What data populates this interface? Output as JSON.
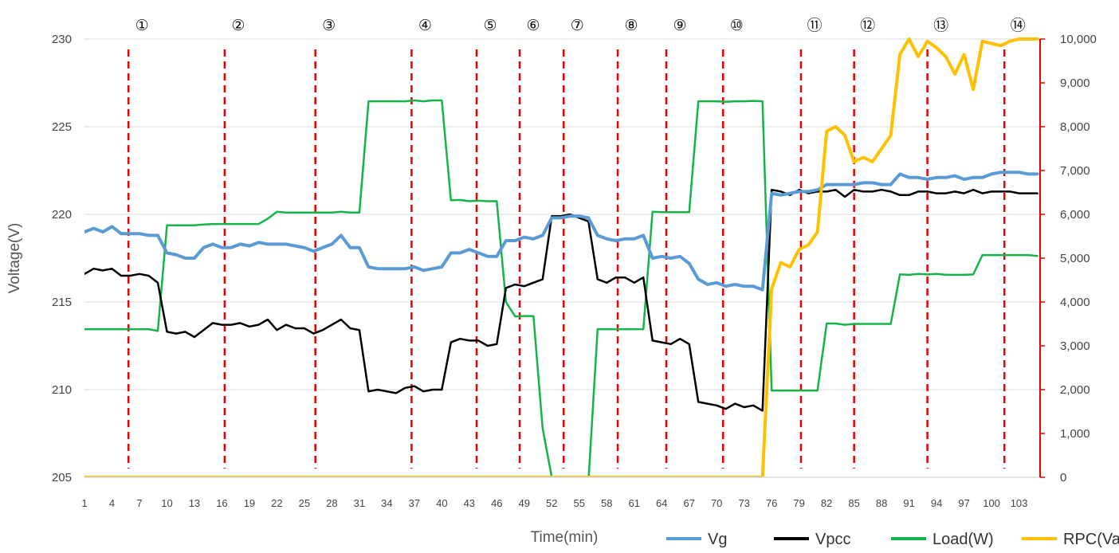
{
  "chart_data": {
    "type": "line",
    "xlabel": "Time(min)",
    "ylabel": "Voltage(V)",
    "x": [
      1,
      2,
      3,
      4,
      5,
      6,
      7,
      8,
      9,
      10,
      11,
      12,
      13,
      14,
      15,
      16,
      17,
      18,
      19,
      20,
      21,
      22,
      23,
      24,
      25,
      26,
      27,
      28,
      29,
      30,
      31,
      32,
      33,
      34,
      35,
      36,
      37,
      38,
      39,
      40,
      41,
      42,
      43,
      44,
      45,
      46,
      47,
      48,
      49,
      50,
      51,
      52,
      53,
      54,
      55,
      56,
      57,
      58,
      59,
      60,
      61,
      62,
      63,
      64,
      65,
      66,
      67,
      68,
      69,
      70,
      71,
      72,
      73,
      74,
      75,
      76,
      77,
      78,
      79,
      80,
      81,
      82,
      83,
      84,
      85,
      86,
      87,
      88,
      89,
      90,
      91,
      92,
      93,
      94,
      95,
      96,
      97,
      98,
      99,
      100,
      101,
      102,
      103,
      104,
      105
    ],
    "x_tick_labels": [
      "1",
      "4",
      "7",
      "10",
      "13",
      "16",
      "19",
      "22",
      "25",
      "28",
      "31",
      "34",
      "37",
      "40",
      "43",
      "46",
      "49",
      "52",
      "55",
      "58",
      "61",
      "64",
      "67",
      "70",
      "73",
      "76",
      "79",
      "82",
      "85",
      "88",
      "91",
      "94",
      "97",
      "100",
      "103"
    ],
    "y_left": {
      "min": 205,
      "max": 230,
      "ticks": [
        "205",
        "210",
        "215",
        "220",
        "225",
        "230"
      ]
    },
    "y_right": {
      "min": 0,
      "max": 10000,
      "ticks": [
        "0",
        "1,000",
        "2,000",
        "3,000",
        "4,000",
        "5,000",
        "6,000",
        "7,000",
        "8,000",
        "9,000",
        "10,000"
      ],
      "color": "#e60000"
    },
    "grid": true,
    "legend_position": "bottom-right",
    "markers": [
      {
        "label": "①",
        "x": 5.8
      },
      {
        "label": "②",
        "x": 16.3
      },
      {
        "label": "③",
        "x": 26.2
      },
      {
        "label": "④",
        "x": 36.7
      },
      {
        "label": "⑤",
        "x": 43.8
      },
      {
        "label": "⑥",
        "x": 48.5
      },
      {
        "label": "⑦",
        "x": 53.3
      },
      {
        "label": "⑧",
        "x": 59.2
      },
      {
        "label": "⑨",
        "x": 64.5
      },
      {
        "label": "⑩",
        "x": 70.7
      },
      {
        "label": "⑪",
        "x": 79.2
      },
      {
        "label": "⑫",
        "x": 85.0
      },
      {
        "label": "⑬",
        "x": 93.0
      },
      {
        "label": "⑭",
        "x": 101.4
      }
    ],
    "series": [
      {
        "name": "Vg",
        "axis": "left",
        "color": "#5b9bd5",
        "width": 4,
        "values": [
          219.0,
          219.2,
          219.0,
          219.3,
          218.9,
          218.9,
          218.9,
          218.8,
          218.8,
          217.8,
          217.7,
          217.5,
          217.5,
          218.1,
          218.3,
          218.1,
          218.1,
          218.3,
          218.2,
          218.4,
          218.3,
          218.3,
          218.3,
          218.2,
          218.1,
          217.9,
          218.1,
          218.3,
          218.8,
          218.1,
          218.1,
          217.0,
          216.9,
          216.9,
          216.9,
          216.9,
          217.0,
          216.8,
          216.9,
          217.0,
          217.8,
          217.8,
          218.0,
          217.8,
          217.6,
          217.6,
          218.5,
          218.5,
          218.7,
          218.6,
          218.8,
          219.8,
          219.8,
          219.9,
          219.9,
          219.8,
          218.8,
          218.6,
          218.5,
          218.6,
          218.6,
          218.8,
          217.5,
          217.6,
          217.5,
          217.6,
          217.2,
          216.3,
          216.0,
          216.1,
          215.9,
          216.0,
          215.9,
          215.9,
          215.7,
          221.2,
          221.1,
          221.2,
          221.3,
          221.3,
          221.4,
          221.7,
          221.7,
          221.7,
          221.7,
          221.8,
          221.8,
          221.7,
          221.7,
          222.3,
          222.1,
          222.1,
          222.0,
          222.1,
          222.1,
          222.2,
          222.0,
          222.1,
          222.1,
          222.3,
          222.4,
          222.4,
          222.4,
          222.3,
          222.3
        ]
      },
      {
        "name": "Vpcc",
        "axis": "left",
        "color": "#000000",
        "width": 2.5,
        "values": [
          216.6,
          216.9,
          216.8,
          216.9,
          216.5,
          216.5,
          216.6,
          216.5,
          216.1,
          213.3,
          213.2,
          213.3,
          213.0,
          213.4,
          213.8,
          213.7,
          213.7,
          213.8,
          213.6,
          213.7,
          214.0,
          213.4,
          213.7,
          213.5,
          213.5,
          213.2,
          213.4,
          213.7,
          214.0,
          213.5,
          213.4,
          209.9,
          210.0,
          209.9,
          209.8,
          210.1,
          210.2,
          209.9,
          210.0,
          210.0,
          212.7,
          212.9,
          212.8,
          212.8,
          212.5,
          212.6,
          215.8,
          216.0,
          215.9,
          216.1,
          216.3,
          219.9,
          219.9,
          220.0,
          219.8,
          219.6,
          216.3,
          216.1,
          216.4,
          216.4,
          216.1,
          216.4,
          212.8,
          212.7,
          212.6,
          212.9,
          212.6,
          209.3,
          209.2,
          209.1,
          208.9,
          209.2,
          209.0,
          209.1,
          208.8,
          221.4,
          221.3,
          221.1,
          221.4,
          221.2,
          221.3,
          221.3,
          221.4,
          221.0,
          221.4,
          221.3,
          221.3,
          221.4,
          221.3,
          221.1,
          221.1,
          221.3,
          221.3,
          221.2,
          221.2,
          221.3,
          221.2,
          221.4,
          221.2,
          221.3,
          221.3,
          221.3,
          221.2,
          221.2,
          221.2
        ]
      },
      {
        "name": "Load(W)",
        "axis": "right",
        "color": "#16b34a",
        "width": 2.5,
        "values": [
          3380,
          3380,
          3380,
          3380,
          3380,
          3380,
          3380,
          3380,
          3340,
          5750,
          5750,
          5750,
          5750,
          5770,
          5780,
          5780,
          5780,
          5780,
          5780,
          5780,
          5900,
          6060,
          6040,
          6040,
          6040,
          6040,
          6040,
          6040,
          6060,
          6040,
          6040,
          8580,
          8580,
          8580,
          8580,
          8580,
          8600,
          8580,
          8600,
          8600,
          6320,
          6330,
          6300,
          6310,
          6300,
          6300,
          4000,
          3670,
          3680,
          3680,
          1120,
          0,
          -100,
          -100,
          -100,
          -100,
          3380,
          3380,
          3380,
          3380,
          3380,
          3380,
          6060,
          6050,
          6050,
          6050,
          6050,
          8580,
          8580,
          8580,
          8570,
          8580,
          8580,
          8590,
          8580,
          1980,
          1980,
          1980,
          1980,
          1980,
          1980,
          3510,
          3510,
          3480,
          3500,
          3500,
          3500,
          3500,
          3500,
          4630,
          4620,
          4640,
          4630,
          4640,
          4620,
          4620,
          4620,
          4630,
          5070,
          5070,
          5070,
          5070,
          5070,
          5070,
          5050
        ]
      },
      {
        "name": "RPC(Var)",
        "axis": "right",
        "color": "#ffc000",
        "width": 4,
        "values": [
          0,
          0,
          0,
          0,
          0,
          0,
          0,
          0,
          0,
          0,
          0,
          0,
          0,
          0,
          0,
          0,
          0,
          0,
          0,
          0,
          0,
          0,
          0,
          0,
          0,
          0,
          0,
          0,
          0,
          0,
          0,
          0,
          0,
          0,
          0,
          0,
          0,
          0,
          0,
          0,
          0,
          0,
          0,
          0,
          0,
          0,
          0,
          0,
          0,
          0,
          0,
          0,
          0,
          0,
          0,
          0,
          0,
          0,
          0,
          0,
          0,
          0,
          0,
          0,
          0,
          0,
          0,
          0,
          0,
          0,
          0,
          0,
          0,
          0,
          0,
          4300,
          4900,
          4800,
          5200,
          5300,
          5600,
          7900,
          8000,
          7800,
          7200,
          7300,
          7200,
          7500,
          7800,
          9650,
          10000,
          9600,
          9950,
          9800,
          9600,
          9200,
          9650,
          8850,
          9950,
          9900,
          9850,
          9950,
          10000,
          10000,
          10000
        ]
      }
    ]
  }
}
